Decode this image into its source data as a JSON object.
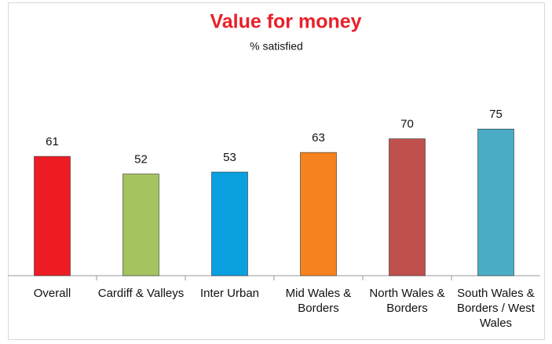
{
  "chart_data": {
    "type": "bar",
    "title": "Value for money",
    "subtitle": "% satisfied",
    "categories": [
      "Overall",
      "Cardiff & Valleys",
      "Inter Urban",
      "Mid Wales & Borders",
      "North Wales & Borders",
      "South Wales & Borders / West Wales"
    ],
    "values": [
      61,
      52,
      53,
      63,
      70,
      75
    ],
    "colors": [
      "#ed1c24",
      "#a5c35f",
      "#0aa0e0",
      "#f5821f",
      "#c0504d",
      "#4bacc6"
    ]
  }
}
